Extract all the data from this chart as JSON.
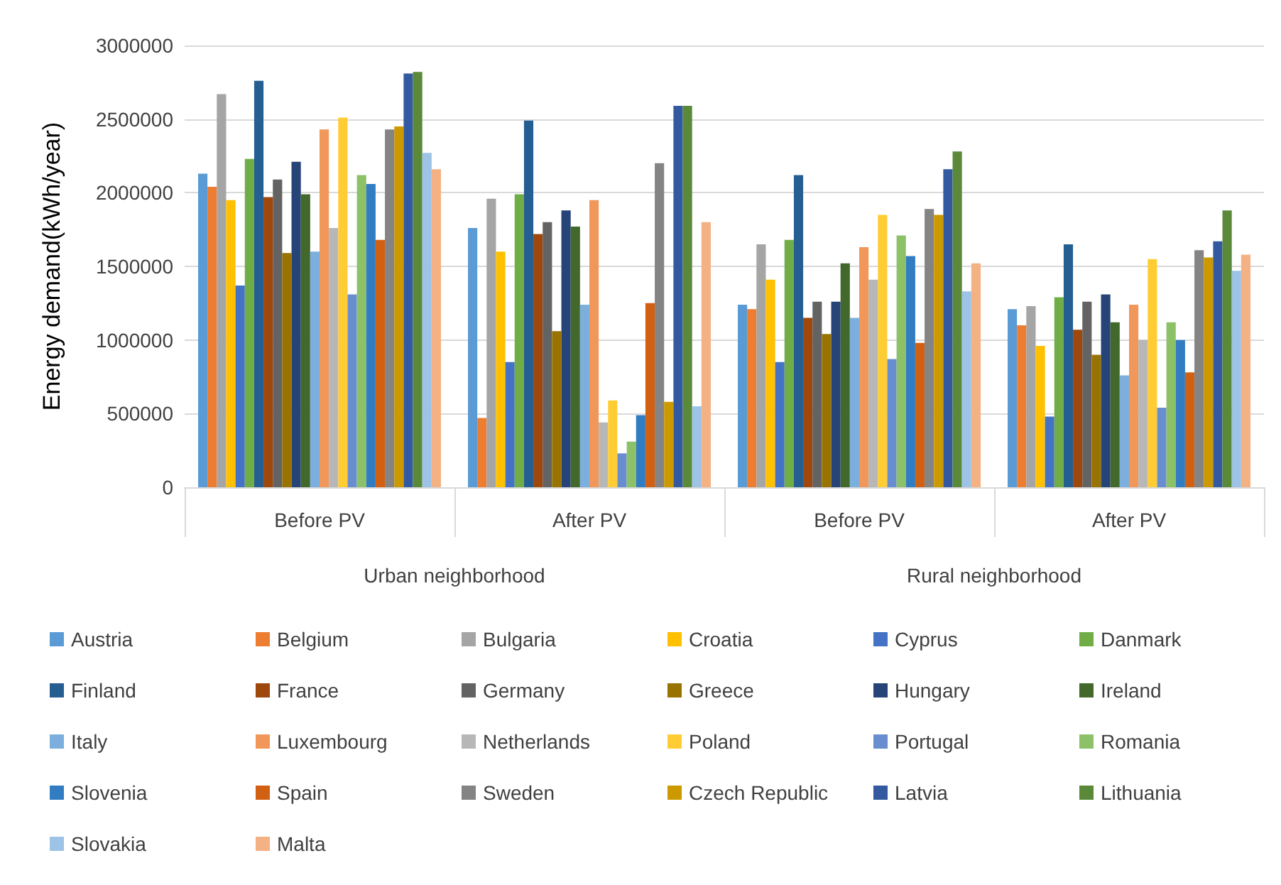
{
  "chart_data": {
    "type": "bar",
    "ylabel": "Energy demand(kWh/year)",
    "categories": [
      "Before PV",
      "After PV",
      "Before PV",
      "After PV"
    ],
    "annotations": [
      "Urban neighborhood",
      "Rural neighborhood"
    ],
    "ylim": [
      0,
      3000000
    ],
    "yticks": [
      0,
      500000,
      1000000,
      1500000,
      2000000,
      2500000,
      3000000
    ],
    "grid": "y",
    "legend": "bottom",
    "series": [
      {
        "name": "Austria",
        "color": "#5b9bd5",
        "values": [
          2130000,
          1760000,
          1240000,
          1210000
        ]
      },
      {
        "name": "Belgium",
        "color": "#ed7d31",
        "values": [
          2040000,
          470000,
          1210000,
          1100000
        ]
      },
      {
        "name": "Bulgaria",
        "color": "#a5a5a5",
        "values": [
          2670000,
          1960000,
          1650000,
          1230000
        ]
      },
      {
        "name": "Croatia",
        "color": "#ffc000",
        "values": [
          1950000,
          1600000,
          1410000,
          960000
        ]
      },
      {
        "name": "Cyprus",
        "color": "#4472c4",
        "values": [
          1370000,
          850000,
          850000,
          480000
        ]
      },
      {
        "name": "Danmark",
        "color": "#70ad47",
        "values": [
          2230000,
          1990000,
          1680000,
          1290000
        ]
      },
      {
        "name": "Finland",
        "color": "#255e91",
        "values": [
          2760000,
          2490000,
          2120000,
          1650000
        ]
      },
      {
        "name": "France",
        "color": "#9e480e",
        "values": [
          1970000,
          1720000,
          1150000,
          1070000
        ]
      },
      {
        "name": "Germany",
        "color": "#636363",
        "values": [
          2090000,
          1800000,
          1260000,
          1260000
        ]
      },
      {
        "name": "Greece",
        "color": "#997300",
        "values": [
          1590000,
          1060000,
          1040000,
          900000
        ]
      },
      {
        "name": "Hungary",
        "color": "#264478",
        "values": [
          2210000,
          1880000,
          1260000,
          1310000
        ]
      },
      {
        "name": "Ireland",
        "color": "#43682b",
        "values": [
          1990000,
          1770000,
          1520000,
          1120000
        ]
      },
      {
        "name": "Italy",
        "color": "#7cafdd",
        "values": [
          1600000,
          1240000,
          1150000,
          760000
        ]
      },
      {
        "name": "Luxembourg",
        "color": "#f1975a",
        "values": [
          2430000,
          1950000,
          1630000,
          1240000
        ]
      },
      {
        "name": "Netherlands",
        "color": "#b7b7b7",
        "values": [
          1760000,
          440000,
          1410000,
          1000000
        ]
      },
      {
        "name": "Poland",
        "color": "#ffcd33",
        "values": [
          2510000,
          590000,
          1850000,
          1550000
        ]
      },
      {
        "name": "Portugal",
        "color": "#698ed0",
        "values": [
          1310000,
          230000,
          870000,
          540000
        ]
      },
      {
        "name": "Romania",
        "color": "#8cc168",
        "values": [
          2120000,
          310000,
          1710000,
          1120000
        ]
      },
      {
        "name": "Slovenia",
        "color": "#327dc2",
        "values": [
          2060000,
          490000,
          1570000,
          1000000
        ]
      },
      {
        "name": "Spain",
        "color": "#d26012",
        "values": [
          1680000,
          1250000,
          980000,
          780000
        ]
      },
      {
        "name": "Sweden",
        "color": "#848484",
        "values": [
          2430000,
          2200000,
          1890000,
          1610000
        ]
      },
      {
        "name": "Czech Republic",
        "color": "#cc9a00",
        "values": [
          2450000,
          580000,
          1850000,
          1560000
        ]
      },
      {
        "name": "Latvia",
        "color": "#335aa1",
        "values": [
          2810000,
          2590000,
          2160000,
          1670000
        ]
      },
      {
        "name": "Lithuania",
        "color": "#5a8a39",
        "values": [
          2820000,
          2590000,
          2280000,
          1880000
        ]
      },
      {
        "name": "Slovakia",
        "color": "#9dc3e6",
        "values": [
          2270000,
          550000,
          1330000,
          1470000
        ]
      },
      {
        "name": "Malta",
        "color": "#f4b183",
        "values": [
          2160000,
          1800000,
          1520000,
          1580000
        ]
      }
    ]
  }
}
